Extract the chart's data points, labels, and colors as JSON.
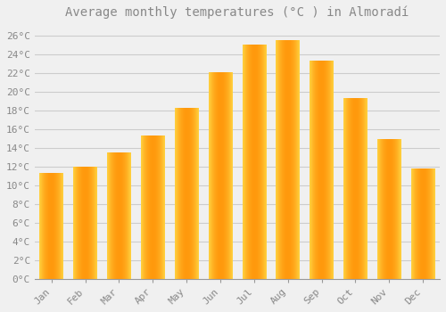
{
  "months": [
    "Jan",
    "Feb",
    "Mar",
    "Apr",
    "May",
    "Jun",
    "Jul",
    "Aug",
    "Sep",
    "Oct",
    "Nov",
    "Dec"
  ],
  "temperatures": [
    11.3,
    12.0,
    13.5,
    15.3,
    18.3,
    22.1,
    25.0,
    25.5,
    23.3,
    19.3,
    14.9,
    11.8
  ],
  "title": "Average monthly temperatures (°C ) in Almoradí",
  "bar_color_center": "#FFA500",
  "bar_color_edge": "#FFD060",
  "background_color": "#F0F0F0",
  "grid_color": "#CCCCCC",
  "text_color": "#888888",
  "ylim": [
    0,
    27
  ],
  "yticks": [
    0,
    2,
    4,
    6,
    8,
    10,
    12,
    14,
    16,
    18,
    20,
    22,
    24,
    26
  ],
  "title_fontsize": 10,
  "tick_fontsize": 8
}
